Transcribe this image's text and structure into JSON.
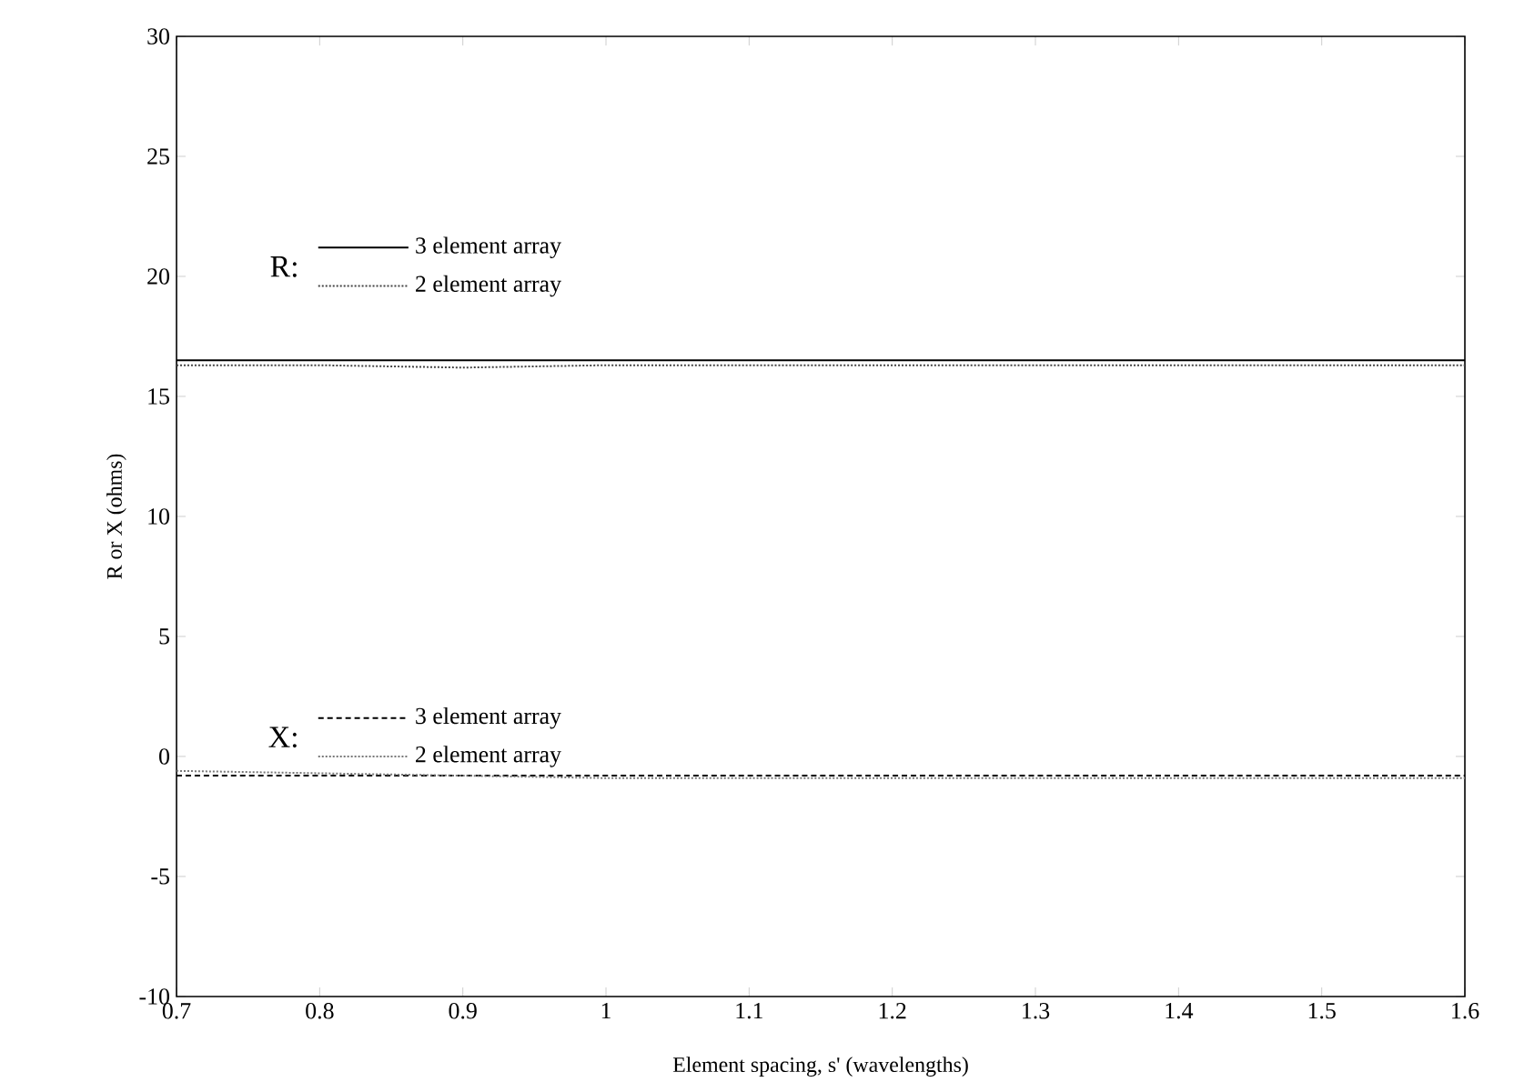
{
  "chart_data": {
    "type": "line",
    "xlabel": "Element spacing, s' (wavelengths)",
    "ylabel": "R or X (ohms)",
    "x": [
      0.7,
      0.8,
      0.9,
      1.0,
      1.1,
      1.2,
      1.3,
      1.4,
      1.5,
      1.6
    ],
    "series": [
      {
        "name": "3 element array",
        "color": "#000000",
        "line_style": "solid",
        "values": [
          16.5,
          16.5,
          16.5,
          16.5,
          16.5,
          16.5,
          16.5,
          16.5,
          16.5,
          16.5
        ]
      },
      {
        "name": "2 element array",
        "color": "#444444",
        "line_style": "dotted",
        "values": [
          16.3,
          16.3,
          16.2,
          16.3,
          16.3,
          16.3,
          16.3,
          16.3,
          16.3,
          16.3
        ]
      },
      {
        "name": "3 element array",
        "color": "#000000",
        "line_style": "dashed",
        "values": [
          -0.8,
          -0.8,
          -0.8,
          -0.8,
          -0.8,
          -0.8,
          -0.8,
          -0.8,
          -0.8,
          -0.8
        ]
      },
      {
        "name": "2 element array",
        "color": "#777777",
        "line_style": "dotted",
        "values": [
          -0.6,
          -0.7,
          -0.8,
          -0.9,
          -0.9,
          -0.9,
          -0.9,
          -0.9,
          -0.9,
          -0.9
        ]
      }
    ],
    "annotations": [
      "R:",
      "X:"
    ],
    "legend": "left",
    "xlim": [
      0.7,
      1.6
    ],
    "ylim": [
      -10,
      30
    ],
    "xticks": [
      0.7,
      0.8,
      0.9,
      {
        "value": 1.0,
        "label": "1"
      },
      1.1,
      1.2,
      1.3,
      1.4,
      1.5,
      1.6
    ],
    "yticks": [
      -10,
      -5,
      0,
      5,
      10,
      15,
      20,
      25,
      30
    ],
    "grid": false
  }
}
